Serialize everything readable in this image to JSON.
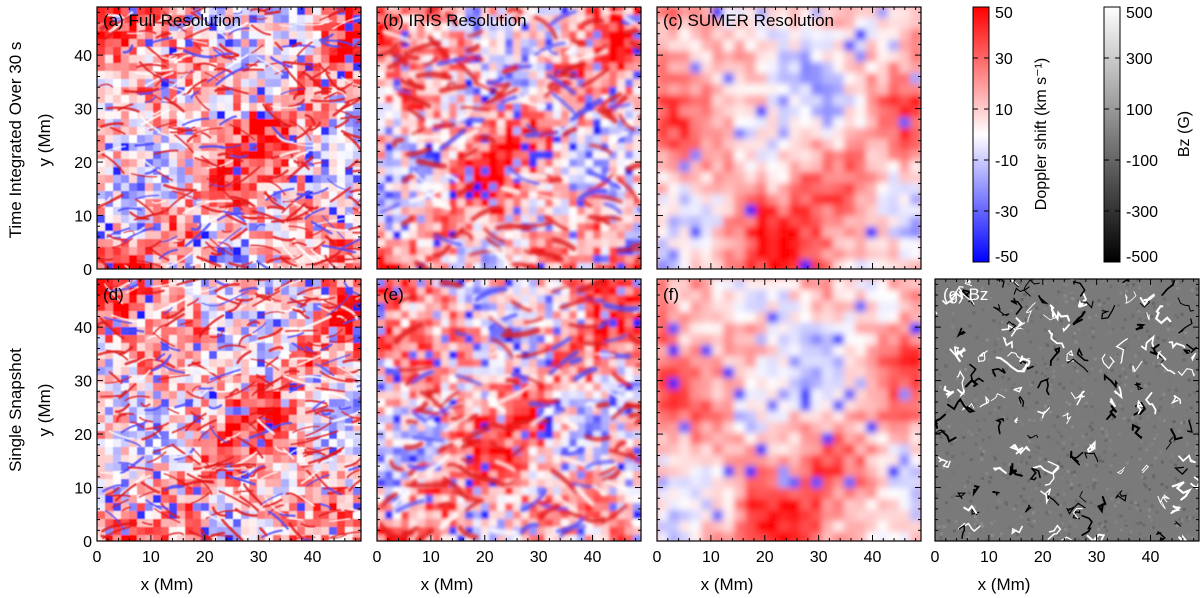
{
  "figure": {
    "row_titles": [
      "Time Integrated Over 30 s",
      "Single Snapshot"
    ],
    "panels": [
      {
        "label": "(a) Full Resolution",
        "quantity": "Doppler shift",
        "resolution": "full",
        "row": 0,
        "col": 0,
        "light_label": false
      },
      {
        "label": "(b) IRIS Resolution",
        "quantity": "Doppler shift",
        "resolution": "iris",
        "row": 0,
        "col": 1,
        "light_label": false
      },
      {
        "label": "(c) SUMER Resolution",
        "quantity": "Doppler shift",
        "resolution": "sumer",
        "row": 0,
        "col": 2,
        "light_label": false
      },
      {
        "label": "(d)",
        "quantity": "Doppler shift",
        "resolution": "full",
        "row": 1,
        "col": 0,
        "light_label": false
      },
      {
        "label": "(e)",
        "quantity": "Doppler shift",
        "resolution": "iris",
        "row": 1,
        "col": 1,
        "light_label": false
      },
      {
        "label": "(f)",
        "quantity": "Doppler shift",
        "resolution": "sumer",
        "row": 1,
        "col": 2,
        "light_label": false
      },
      {
        "label": "(g) Bz",
        "quantity": "Bz",
        "resolution": "full",
        "row": 1,
        "col": 3,
        "light_label": true
      }
    ],
    "colorbars": [
      {
        "name": "doppler",
        "label": "Doppler shift (km s⁻¹)",
        "ticks": [
          "50",
          "30",
          "10",
          "-10",
          "-30",
          "-50"
        ],
        "range": [
          -50,
          50
        ],
        "colors": {
          "max": "#ff0000",
          "mid": "#ffffff",
          "min": "#0000ff"
        }
      },
      {
        "name": "bz",
        "label": "Bz (G)",
        "ticks": [
          "500",
          "300",
          "100",
          "-100",
          "-300",
          "-500"
        ],
        "range": [
          -500,
          500
        ],
        "colors": {
          "max": "#ffffff",
          "mid": "#808080",
          "min": "#000000"
        }
      }
    ]
  },
  "chart_data": {
    "type": "heatmap",
    "xlabel": "x (Mm)",
    "ylabel": "y (Mm)",
    "xlim": [
      0,
      49
    ],
    "ylim": [
      0,
      49
    ],
    "x_ticks": [
      "0",
      "10",
      "20",
      "30",
      "40"
    ],
    "y_ticks": [
      "0",
      "10",
      "20",
      "30",
      "40"
    ],
    "x_tick_values": [
      0,
      10,
      20,
      30,
      40
    ],
    "y_tick_values": [
      0,
      10,
      20,
      30,
      40
    ]
  }
}
